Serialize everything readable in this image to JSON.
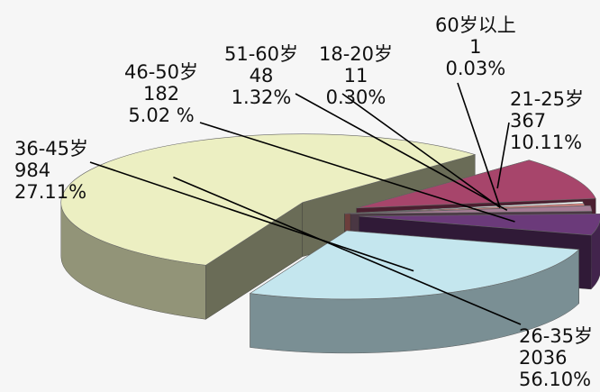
{
  "chart_data": {
    "type": "pie",
    "style": "3d-exploded",
    "slices": [
      {
        "category": "21-25岁",
        "count": "367",
        "percent": "10.11%",
        "value": 10.11,
        "color": "#a7456b"
      },
      {
        "category": "26-35岁",
        "count": "2036",
        "percent": "56.10%",
        "value": 56.1,
        "color": "#ecefc2"
      },
      {
        "category": "36-45岁",
        "count": "984",
        "percent": "27.11%",
        "value": 27.11,
        "color": "#c4e6ee"
      },
      {
        "category": "46-50岁",
        "count": "182",
        "percent": "5.02 %",
        "value": 5.02,
        "color": "#6b3a7a"
      },
      {
        "category": "51-60岁",
        "count": "48",
        "percent": "1.32%",
        "value": 1.32,
        "color": "#a57b94"
      },
      {
        "category": "18-20岁",
        "count": "11",
        "percent": "0.30%",
        "value": 0.3,
        "color": "#f08a86"
      },
      {
        "category": "60岁以上",
        "count": "1",
        "percent": "0.03%",
        "value": 0.03,
        "color": "#ffffff"
      }
    ]
  }
}
